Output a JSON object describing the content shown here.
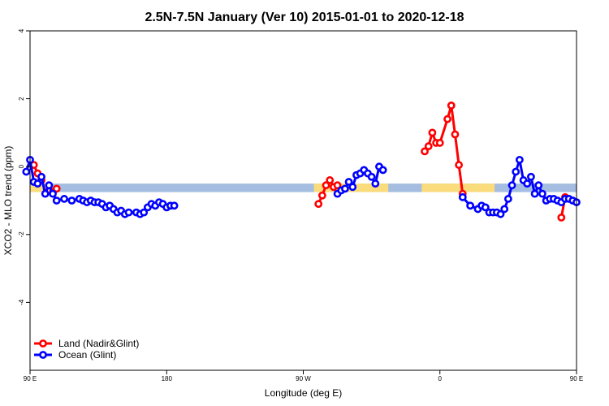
{
  "chart_data": {
    "type": "line",
    "title": "2.5N-7.5N January (Ver 10)   2015-01-01 to 2020-12-18",
    "xlabel": "Longitude (deg E)",
    "ylabel": "XCO2 - MLO trend (ppm)",
    "xlim": [
      90,
      450
    ],
    "ylim": [
      -6,
      4
    ],
    "x_ticks": [
      {
        "value": 90,
        "label": "90 E"
      },
      {
        "value": 180,
        "label": "180"
      },
      {
        "value": 270,
        "label": "90 W"
      },
      {
        "value": 360,
        "label": "0"
      },
      {
        "value": 450,
        "label": "90 E"
      },
      {
        "value": 540,
        "label": "180"
      }
    ],
    "x_ticks_note": "",
    "y_ticks": [
      {
        "value": 4,
        "label": "4"
      },
      {
        "value": 2,
        "label": "2"
      },
      {
        "value": 0,
        "label": "0"
      },
      {
        "value": -2,
        "label": "-2"
      },
      {
        "value": -4,
        "label": "-4"
      }
    ],
    "grid": false,
    "legend_position": "bottom-left",
    "band": {
      "y_top": -0.5,
      "y_bottom": -0.75,
      "ocean_color": "#a4bde0",
      "land_color": "#fbdc7c"
    },
    "land_spans": [
      [
        82,
        104
      ],
      [
        277,
        326
      ],
      [
        348,
        396
      ],
      [
        457,
        480
      ]
    ],
    "series": [
      {
        "name": "Land (Nadir&Glint)",
        "color": "#ff0000",
        "segments": [
          [
            [
              92.5,
              0.05
            ],
            [
              95,
              -0.2
            ],
            [
              97.5,
              -0.4
            ]
          ],
          [
            [
              102.5,
              -0.7
            ],
            [
              105,
              -0.75
            ],
            [
              107.5,
              -0.65
            ]
          ],
          [
            [
              280,
              -1.1
            ],
            [
              282.5,
              -0.85
            ],
            [
              285,
              -0.55
            ],
            [
              287.5,
              -0.4
            ],
            [
              290,
              -0.6
            ],
            [
              292.5,
              -0.55
            ]
          ],
          [
            [
              350,
              0.45
            ],
            [
              352.5,
              0.6
            ],
            [
              355,
              1.0
            ],
            [
              357.5,
              0.7
            ],
            [
              360,
              0.7
            ],
            [
              365,
              1.4
            ],
            [
              367.5,
              1.8
            ],
            [
              370,
              0.95
            ],
            [
              372.5,
              0.05
            ],
            [
              375,
              -0.8
            ]
          ],
          [
            [
              440,
              -1.5
            ],
            [
              442.5,
              -0.9
            ]
          ],
          [
            [
              462.5,
              0.1
            ],
            [
              465,
              -0.2
            ],
            [
              467.5,
              -0.45
            ]
          ],
          [
            [
              472.5,
              -0.6
            ],
            [
              475,
              -0.75
            ],
            [
              477.5,
              -0.65
            ]
          ]
        ]
      },
      {
        "name": "Ocean (Glint)",
        "color": "#0000ff",
        "segments": [
          [
            [
              87.5,
              -0.15
            ],
            [
              90,
              0.2
            ],
            [
              92.5,
              -0.45
            ],
            [
              95,
              -0.5
            ],
            [
              97.5,
              -0.3
            ],
            [
              100,
              -0.8
            ],
            [
              102.5,
              -0.55
            ],
            [
              105,
              -0.8
            ],
            [
              107.5,
              -1.0
            ],
            [
              112.5,
              -0.95
            ],
            [
              117.5,
              -1.0
            ],
            [
              122.5,
              -0.95
            ],
            [
              125,
              -1.0
            ],
            [
              127.5,
              -1.05
            ],
            [
              130,
              -1.0
            ],
            [
              132.5,
              -1.05
            ],
            [
              135,
              -1.05
            ],
            [
              137.5,
              -1.1
            ],
            [
              140,
              -1.2
            ],
            [
              142.5,
              -1.15
            ],
            [
              145,
              -1.25
            ],
            [
              147.5,
              -1.35
            ],
            [
              150,
              -1.3
            ],
            [
              152.5,
              -1.4
            ],
            [
              155,
              -1.35
            ],
            [
              160,
              -1.35
            ],
            [
              162.5,
              -1.4
            ],
            [
              165,
              -1.35
            ],
            [
              167.5,
              -1.2
            ],
            [
              170,
              -1.1
            ],
            [
              172.5,
              -1.15
            ],
            [
              175,
              -1.05
            ],
            [
              177.5,
              -1.1
            ],
            [
              180,
              -1.2
            ],
            [
              182.5,
              -1.15
            ],
            [
              185,
              -1.15
            ]
          ],
          [
            [
              292.5,
              -0.8
            ],
            [
              295,
              -0.7
            ],
            [
              297.5,
              -0.65
            ],
            [
              300,
              -0.45
            ],
            [
              302.5,
              -0.6
            ],
            [
              305,
              -0.25
            ],
            [
              307.5,
              -0.2
            ],
            [
              310,
              -0.1
            ],
            [
              312.5,
              -0.2
            ],
            [
              315,
              -0.3
            ],
            [
              317.5,
              -0.5
            ],
            [
              320,
              0.0
            ],
            [
              322.5,
              -0.1
            ]
          ],
          [
            [
              375,
              -0.9
            ],
            [
              380,
              -1.15
            ],
            [
              385,
              -1.25
            ],
            [
              387.5,
              -1.15
            ],
            [
              390,
              -1.2
            ],
            [
              392.5,
              -1.35
            ],
            [
              395,
              -1.35
            ],
            [
              397.5,
              -1.35
            ],
            [
              400,
              -1.4
            ],
            [
              402.5,
              -1.25
            ],
            [
              405,
              -0.95
            ],
            [
              407.5,
              -0.55
            ],
            [
              410,
              -0.15
            ],
            [
              412.5,
              0.2
            ],
            [
              415,
              -0.4
            ],
            [
              417.5,
              -0.5
            ],
            [
              420,
              -0.3
            ],
            [
              422.5,
              -0.8
            ],
            [
              425,
              -0.55
            ],
            [
              427.5,
              -0.8
            ],
            [
              430,
              -1.0
            ],
            [
              432.5,
              -0.95
            ],
            [
              435,
              -0.95
            ],
            [
              437.5,
              -1.0
            ],
            [
              440,
              -1.05
            ],
            [
              442.5,
              -0.95
            ],
            [
              445,
              -0.95
            ],
            [
              447.5,
              -1.0
            ],
            [
              450,
              -1.05
            ]
          ]
        ]
      }
    ]
  }
}
